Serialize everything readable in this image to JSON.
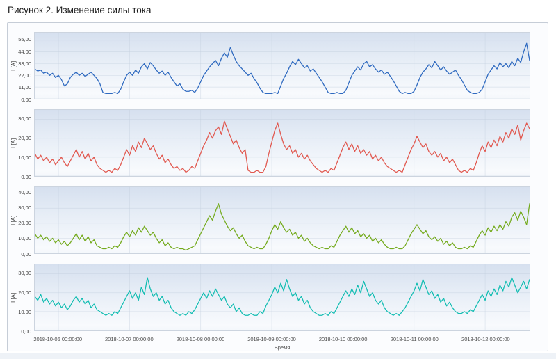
{
  "title": "Рисунок 2. Изменение силы тока",
  "chart_data": {
    "type": "line",
    "xlabel": "Время",
    "ylabel": "I [A]",
    "grid": true,
    "x_tick_labels": [
      "2018-10-06 00:00:00",
      "2018-10-07 00:00:00",
      "2018-10-08 00:00:00",
      "2018-10-09 00:00:00",
      "2018-10-10 00:00:00",
      "2018-10-11 00:00:00",
      "2018-10-12 00:00:00"
    ],
    "x_tick_positions_hours": [
      8,
      32,
      56,
      80,
      104,
      128,
      152
    ],
    "x_hours_total": 167,
    "x_step_hours": 1,
    "charts": [
      {
        "series": "current-series-1",
        "color": "#2f6ac0",
        "ylim": [
          0,
          62
        ],
        "y_ticks": [
          0,
          11,
          22,
          33,
          44,
          55
        ],
        "y_tick_labels": [
          "0,00",
          "11,00",
          "22,00",
          "33,00",
          "44,00",
          "55,00"
        ],
        "values": [
          28,
          26,
          27,
          24,
          25,
          22,
          24,
          20,
          22,
          18,
          12,
          14,
          20,
          23,
          25,
          22,
          24,
          21,
          23,
          25,
          22,
          19,
          14,
          6,
          5,
          5,
          5,
          6,
          5,
          9,
          16,
          22,
          25,
          22,
          27,
          24,
          30,
          33,
          28,
          34,
          31,
          27,
          24,
          26,
          22,
          25,
          20,
          16,
          12,
          14,
          9,
          7,
          7,
          8,
          6,
          10,
          16,
          22,
          26,
          30,
          33,
          36,
          31,
          38,
          43,
          39,
          48,
          41,
          35,
          31,
          28,
          25,
          22,
          24,
          19,
          15,
          10,
          6,
          5,
          5,
          5,
          6,
          5,
          12,
          19,
          24,
          30,
          35,
          32,
          37,
          33,
          29,
          31,
          26,
          28,
          24,
          20,
          16,
          11,
          6,
          5,
          5,
          6,
          5,
          5,
          8,
          15,
          22,
          26,
          30,
          27,
          33,
          35,
          30,
          32,
          28,
          25,
          27,
          23,
          25,
          21,
          17,
          12,
          7,
          5,
          6,
          5,
          5,
          7,
          13,
          20,
          25,
          28,
          32,
          29,
          35,
          31,
          27,
          30,
          26,
          23,
          25,
          27,
          22,
          18,
          13,
          8,
          6,
          5,
          5,
          6,
          9,
          16,
          23,
          27,
          31,
          28,
          34,
          30,
          33,
          29,
          35,
          31,
          38,
          34,
          44,
          52,
          36
        ]
      },
      {
        "series": "current-series-2",
        "color": "#e1584f",
        "ylim": [
          0,
          35
        ],
        "y_ticks": [
          0,
          10,
          20,
          30
        ],
        "y_tick_labels": [
          "0,00",
          "10,00",
          "20,00",
          "30,00"
        ],
        "values": [
          12,
          9,
          11,
          8,
          10,
          7,
          9,
          6,
          8,
          10,
          7,
          5,
          8,
          11,
          14,
          10,
          13,
          9,
          12,
          8,
          10,
          6,
          4,
          3,
          2,
          3,
          2,
          4,
          3,
          6,
          10,
          14,
          11,
          16,
          13,
          18,
          15,
          20,
          17,
          14,
          16,
          12,
          9,
          11,
          7,
          9,
          6,
          4,
          5,
          3,
          4,
          2,
          3,
          5,
          4,
          8,
          12,
          16,
          19,
          23,
          20,
          24,
          26,
          22,
          29,
          25,
          21,
          17,
          19,
          15,
          12,
          14,
          3,
          2,
          2,
          3,
          2,
          2,
          5,
          12,
          18,
          24,
          28,
          22,
          17,
          14,
          16,
          12,
          14,
          10,
          12,
          9,
          11,
          8,
          6,
          4,
          3,
          2,
          3,
          2,
          4,
          3,
          7,
          11,
          15,
          18,
          14,
          17,
          13,
          16,
          12,
          14,
          11,
          13,
          9,
          11,
          8,
          10,
          7,
          5,
          4,
          3,
          2,
          3,
          2,
          6,
          10,
          14,
          17,
          21,
          18,
          15,
          17,
          13,
          11,
          13,
          10,
          12,
          8,
          10,
          7,
          9,
          6,
          3,
          2,
          3,
          2,
          4,
          3,
          7,
          12,
          16,
          13,
          18,
          15,
          19,
          16,
          21,
          18,
          23,
          20,
          25,
          22,
          27,
          19,
          24,
          28,
          25
        ]
      },
      {
        "series": "current-series-3",
        "color": "#75ab1e",
        "ylim": [
          0,
          44
        ],
        "y_ticks": [
          0,
          10,
          20,
          30,
          40
        ],
        "y_tick_labels": [
          "0,00",
          "10,00",
          "20,00",
          "30,00",
          "40,00"
        ],
        "values": [
          13,
          10,
          12,
          9,
          11,
          8,
          10,
          7,
          9,
          6,
          8,
          5,
          7,
          10,
          13,
          9,
          12,
          8,
          11,
          7,
          9,
          5,
          4,
          3,
          3,
          4,
          3,
          5,
          4,
          7,
          11,
          14,
          11,
          15,
          12,
          17,
          14,
          18,
          15,
          12,
          14,
          10,
          7,
          9,
          5,
          7,
          4,
          3,
          4,
          3,
          3,
          2,
          3,
          4,
          5,
          9,
          13,
          17,
          21,
          25,
          22,
          28,
          33,
          26,
          22,
          18,
          15,
          17,
          13,
          10,
          12,
          8,
          5,
          4,
          3,
          4,
          3,
          3,
          6,
          10,
          15,
          19,
          16,
          21,
          17,
          14,
          16,
          12,
          14,
          10,
          12,
          8,
          10,
          7,
          5,
          4,
          3,
          4,
          3,
          3,
          5,
          4,
          8,
          12,
          15,
          18,
          14,
          17,
          13,
          15,
          11,
          13,
          10,
          12,
          8,
          10,
          7,
          9,
          6,
          4,
          3,
          3,
          4,
          3,
          3,
          5,
          9,
          13,
          16,
          19,
          16,
          13,
          15,
          11,
          9,
          11,
          8,
          10,
          6,
          8,
          5,
          7,
          4,
          3,
          3,
          4,
          3,
          5,
          4,
          8,
          12,
          15,
          12,
          17,
          14,
          18,
          15,
          19,
          16,
          21,
          18,
          24,
          27,
          22,
          28,
          24,
          19,
          33
        ]
      },
      {
        "series": "current-series-4",
        "color": "#12bdb2",
        "ylim": [
          0,
          35
        ],
        "y_ticks": [
          0,
          10,
          20,
          30
        ],
        "y_tick_labels": [
          "0,00",
          "10,00",
          "20,00",
          "30,00"
        ],
        "values": [
          18,
          16,
          19,
          15,
          17,
          14,
          16,
          13,
          15,
          12,
          14,
          11,
          13,
          16,
          18,
          15,
          17,
          14,
          16,
          12,
          14,
          11,
          10,
          9,
          8,
          9,
          8,
          10,
          9,
          12,
          15,
          18,
          21,
          17,
          20,
          16,
          23,
          19,
          28,
          22,
          18,
          20,
          16,
          18,
          14,
          16,
          12,
          10,
          9,
          8,
          9,
          8,
          10,
          9,
          11,
          14,
          17,
          20,
          17,
          21,
          18,
          22,
          19,
          16,
          18,
          14,
          12,
          14,
          10,
          12,
          9,
          8,
          8,
          9,
          8,
          8,
          10,
          9,
          13,
          16,
          19,
          23,
          20,
          25,
          21,
          27,
          22,
          18,
          20,
          16,
          18,
          14,
          16,
          12,
          10,
          9,
          8,
          8,
          9,
          8,
          10,
          9,
          12,
          15,
          18,
          21,
          18,
          22,
          19,
          24,
          20,
          26,
          22,
          18,
          20,
          16,
          14,
          16,
          12,
          10,
          9,
          8,
          9,
          8,
          10,
          12,
          15,
          18,
          21,
          25,
          21,
          27,
          23,
          19,
          21,
          17,
          19,
          15,
          17,
          13,
          15,
          12,
          10,
          9,
          9,
          10,
          9,
          11,
          10,
          13,
          16,
          19,
          16,
          21,
          18,
          22,
          19,
          24,
          21,
          26,
          23,
          28,
          24,
          20,
          23,
          26,
          22,
          27
        ]
      }
    ]
  }
}
